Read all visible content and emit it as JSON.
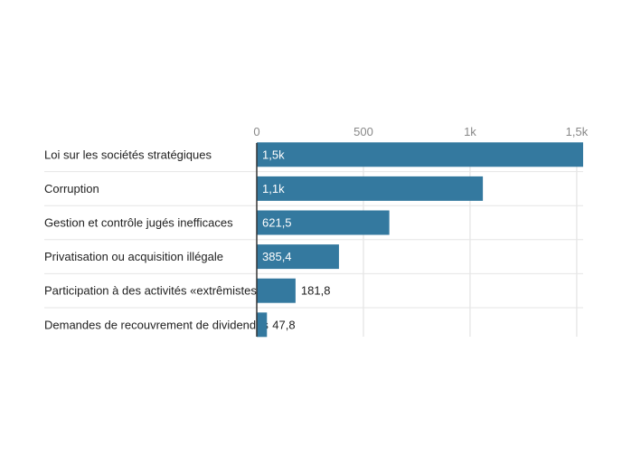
{
  "chart_data": {
    "type": "bar",
    "orientation": "horizontal",
    "title": "",
    "xlabel": "",
    "ylabel": "",
    "categories": [
      "Loi sur les sociétés stratégiques",
      "Corruption",
      "Gestion et contrôle jugés inefficaces",
      "Privatisation ou acquisition illégale",
      "Participation à des activités «extrêmistes»",
      "Demandes de recouvrement de dividendes"
    ],
    "values": [
      1530,
      1060,
      621.5,
      385.4,
      181.8,
      47.8
    ],
    "value_labels": [
      "1,5k",
      "1,1k",
      "621,5",
      "385,4",
      "181,8",
      "47,8"
    ],
    "xlim": [
      0,
      1530
    ],
    "ticks": [
      0,
      500,
      1000,
      1500
    ],
    "tick_labels": [
      "0",
      "500",
      "1k",
      "1,5k"
    ],
    "grid": true,
    "legend": "none",
    "colors": {
      "bar": "#34799f",
      "label_inside": "#ffffff",
      "label_outside": "#222222",
      "grid": "#dddddd",
      "separator": "#e6e6e6",
      "axis": "#333333"
    }
  }
}
